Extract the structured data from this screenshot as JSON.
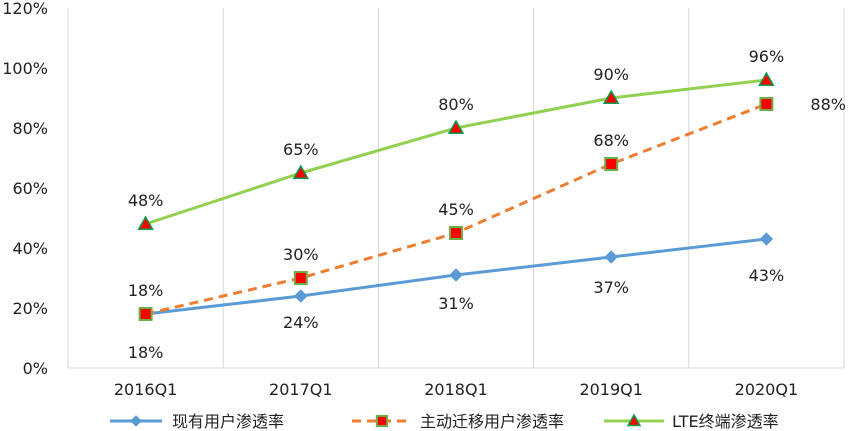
{
  "chart_data": {
    "type": "line",
    "title": "",
    "xlabel": "",
    "ylabel": "",
    "categories": [
      "2016Q1",
      "2017Q1",
      "2018Q1",
      "2019Q1",
      "2020Q1"
    ],
    "ylim": [
      0,
      120
    ],
    "yticks": [
      0,
      20,
      40,
      60,
      80,
      100,
      120
    ],
    "ytick_labels": [
      "0%",
      "20%",
      "40%",
      "60%",
      "80%",
      "100%",
      "120%"
    ],
    "grid": "vertical",
    "legend_position": "bottom",
    "series": [
      {
        "name": "现有用户渗透率",
        "values": [
          18,
          24,
          31,
          37,
          43
        ],
        "labels": [
          "18%",
          "24%",
          "31%",
          "37%",
          "43%"
        ],
        "color": "#5b9bd5",
        "marker": "diamond",
        "line": "solid"
      },
      {
        "name": "主动迁移用户渗透率",
        "values": [
          18,
          30,
          45,
          68,
          88
        ],
        "labels": [
          "18%",
          "30%",
          "45%",
          "68%",
          "88%"
        ],
        "color": "#ed7d31",
        "marker": "square",
        "marker_fill": "#ff0000",
        "marker_edge": "#70ad47",
        "line": "dashed"
      },
      {
        "name": "LTE终端渗透率",
        "values": [
          48,
          65,
          80,
          90,
          96
        ],
        "labels": [
          "48%",
          "65%",
          "80%",
          "90%",
          "96%"
        ],
        "color": "#92d050",
        "marker": "triangle",
        "marker_fill": "#ff0000",
        "marker_edge": "#00a050",
        "line": "solid"
      }
    ]
  },
  "colors": {
    "axis": "#d9d9d9",
    "grid": "#d9d9d9",
    "text": "#222222"
  }
}
